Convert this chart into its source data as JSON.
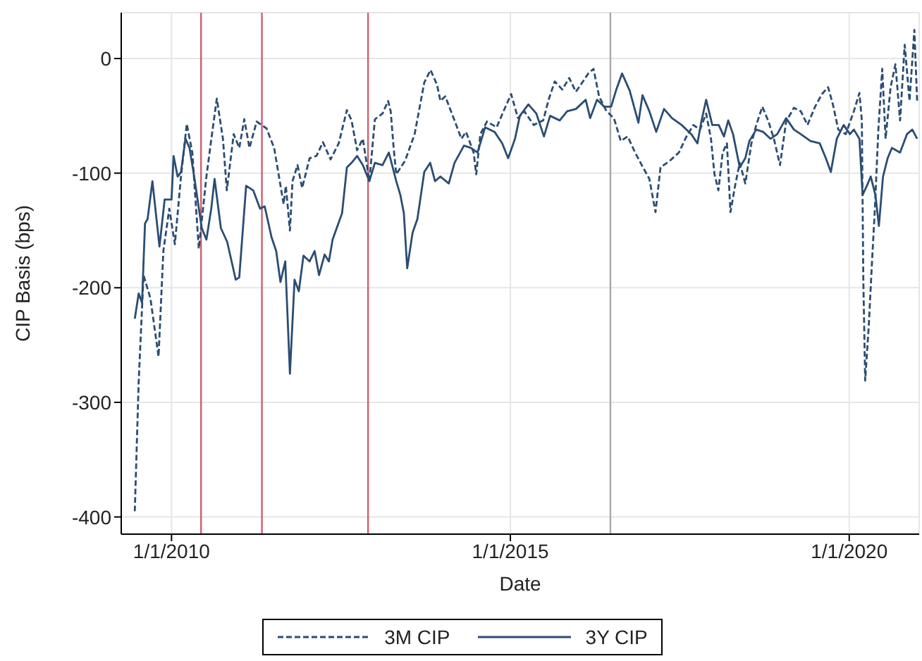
{
  "chart_data": {
    "type": "line",
    "xlabel": "Date",
    "ylabel": "CIP Basis (bps)",
    "xlim": [
      "2009-04-05",
      "2021-01-12"
    ],
    "xticks": [
      {
        "value": "2010-01-01",
        "label": "1/1/2010"
      },
      {
        "value": "2015-01-01",
        "label": "1/1/2015"
      },
      {
        "value": "2020-01-01",
        "label": "1/1/2020"
      }
    ],
    "ylim": [
      -415,
      40
    ],
    "yticks": [
      -400,
      -300,
      -200,
      -100,
      0
    ],
    "grid": true,
    "legend": "bottom",
    "marker": "none",
    "ref_lines": [
      {
        "axis": "x",
        "value": "2010-06-09",
        "color": "#d0606e"
      },
      {
        "axis": "x",
        "value": "2011-05-03",
        "color": "#d0606e"
      },
      {
        "axis": "x",
        "value": "2012-11-25",
        "color": "#d0606e"
      },
      {
        "axis": "x",
        "value": "2016-06-23",
        "color": "#a8a8a8"
      }
    ],
    "series": [
      {
        "name": "3M CIP",
        "color": "#2b4d73",
        "line_style": "dashed",
        "x": [
          "2009-06-17",
          "2009-07-08",
          "2009-08-03",
          "2009-09-09",
          "2009-10-23",
          "2009-11-18",
          "2009-12-20",
          "2010-01-19",
          "2010-02-21",
          "2010-03-24",
          "2010-04-23",
          "2010-05-28",
          "2010-07-08",
          "2010-08-07",
          "2010-09-02",
          "2010-10-05",
          "2010-10-26",
          "2010-12-02",
          "2011-01-01",
          "2011-01-28",
          "2011-02-25",
          "2011-04-05",
          "2011-05-28",
          "2011-07-08",
          "2011-08-03",
          "2011-08-28",
          "2011-09-09",
          "2011-10-01",
          "2011-10-15",
          "2011-11-11",
          "2011-12-06",
          "2012-01-15",
          "2012-02-21",
          "2012-03-27",
          "2012-05-07",
          "2012-06-20",
          "2012-08-03",
          "2012-08-28",
          "2012-09-27",
          "2012-10-28",
          "2012-12-02",
          "2013-01-01",
          "2013-02-11",
          "2013-03-13",
          "2013-03-27",
          "2013-04-12",
          "2013-04-26",
          "2013-06-13",
          "2013-08-03",
          "2013-09-24",
          "2013-10-28",
          "2013-12-02",
          "2013-12-20",
          "2014-01-15",
          "2014-03-06",
          "2014-04-12",
          "2014-05-07",
          "2014-06-17",
          "2014-07-01",
          "2014-07-23",
          "2014-08-28",
          "2014-10-19",
          "2014-11-25",
          "2015-01-05",
          "2015-02-11",
          "2015-03-17",
          "2015-05-07",
          "2015-06-27",
          "2015-07-26",
          "2015-08-28",
          "2015-10-08",
          "2015-11-14",
          "2015-12-20",
          "2016-01-23",
          "2016-02-25",
          "2016-03-24",
          "2016-04-23",
          "2016-06-02",
          "2016-07-12",
          "2016-08-18",
          "2016-09-24",
          "2016-11-03",
          "2016-12-09",
          "2017-01-19",
          "2017-02-21",
          "2017-03-20",
          "2017-05-11",
          "2017-06-27",
          "2017-08-07",
          "2017-09-13",
          "2017-10-19",
          "2017-11-21",
          "2017-12-17",
          "2018-01-05",
          "2018-01-26",
          "2018-02-18",
          "2018-03-13",
          "2018-04-01",
          "2018-04-26",
          "2018-05-21",
          "2018-06-20",
          "2018-07-23",
          "2018-08-18",
          "2018-09-20",
          "2018-10-23",
          "2018-11-21",
          "2018-12-24",
          "2019-01-26",
          "2019-03-09",
          "2019-04-15",
          "2019-05-21",
          "2019-07-01",
          "2019-08-07",
          "2019-09-09",
          "2019-10-05",
          "2019-11-03",
          "2019-12-13",
          "2020-01-26",
          "2020-02-25",
          "2020-03-09",
          "2020-03-17",
          "2020-03-27",
          "2020-04-15",
          "2020-05-03",
          "2020-05-18",
          "2020-06-06",
          "2020-06-27",
          "2020-07-15",
          "2020-08-11",
          "2020-09-06",
          "2020-10-01",
          "2020-10-26",
          "2020-11-21",
          "2020-12-17",
          "2021-01-01"
        ],
        "values": [
          -395,
          -282,
          -189,
          -209,
          -260,
          -168,
          -131,
          -162,
          -103,
          -57,
          -82,
          -166,
          -103,
          -66,
          -35,
          -70,
          -115,
          -66,
          -78,
          -53,
          -78,
          -55,
          -61,
          -78,
          -103,
          -127,
          -111,
          -150,
          -107,
          -93,
          -113,
          -87,
          -85,
          -73,
          -88,
          -74,
          -45,
          -54,
          -80,
          -70,
          -107,
          -53,
          -48,
          -37,
          -46,
          -78,
          -101,
          -89,
          -66,
          -21,
          -10,
          -23,
          -37,
          -33,
          -54,
          -70,
          -64,
          -82,
          -101,
          -66,
          -55,
          -60,
          -46,
          -31,
          -52,
          -46,
          -58,
          -54,
          -36,
          -20,
          -27,
          -17,
          -29,
          -21,
          -13,
          -9,
          -33,
          -46,
          -52,
          -72,
          -68,
          -82,
          -93,
          -105,
          -134,
          -95,
          -89,
          -82,
          -68,
          -58,
          -62,
          -48,
          -70,
          -101,
          -115,
          -82,
          -74,
          -134,
          -111,
          -91,
          -109,
          -74,
          -58,
          -42,
          -55,
          -70,
          -93,
          -55,
          -43,
          -46,
          -58,
          -42,
          -31,
          -25,
          -40,
          -62,
          -66,
          -46,
          -30,
          -54,
          -193,
          -281,
          -234,
          -177,
          -132,
          -62,
          -9,
          -70,
          -25,
          -5,
          -54,
          12,
          -37,
          25,
          -37
        ]
      },
      {
        "name": "3Y CIP",
        "color": "#2b4d73",
        "line_style": "solid",
        "x": [
          "2009-06-17",
          "2009-07-08",
          "2009-07-26",
          "2009-08-11",
          "2009-08-25",
          "2009-09-20",
          "2009-10-28",
          "2009-11-25",
          "2010-01-01",
          "2010-01-12",
          "2010-02-03",
          "2010-02-21",
          "2010-03-17",
          "2010-04-08",
          "2010-05-03",
          "2010-06-13",
          "2010-07-08",
          "2010-08-03",
          "2010-08-21",
          "2010-09-24",
          "2010-10-28",
          "2010-12-13",
          "2011-01-01",
          "2011-02-07",
          "2011-03-17",
          "2011-04-23",
          "2011-05-18",
          "2011-06-24",
          "2011-07-19",
          "2011-08-11",
          "2011-09-06",
          "2011-10-01",
          "2011-10-26",
          "2011-11-18",
          "2011-12-13",
          "2012-01-15",
          "2012-02-11",
          "2012-03-06",
          "2012-04-05",
          "2012-04-28",
          "2012-05-18",
          "2012-06-09",
          "2012-07-08",
          "2012-08-03",
          "2012-08-28",
          "2012-09-27",
          "2012-10-28",
          "2012-12-02",
          "2013-01-01",
          "2013-02-11",
          "2013-03-17",
          "2013-04-26",
          "2013-05-18",
          "2013-06-06",
          "2013-06-24",
          "2013-07-23",
          "2013-08-18",
          "2013-09-24",
          "2013-10-26",
          "2013-11-21",
          "2013-12-20",
          "2014-02-03",
          "2014-03-06",
          "2014-04-26",
          "2014-06-02",
          "2014-07-08",
          "2014-08-18",
          "2014-10-08",
          "2014-11-18",
          "2014-12-20",
          "2015-01-26",
          "2015-02-21",
          "2015-04-08",
          "2015-05-21",
          "2015-07-01",
          "2015-08-03",
          "2015-09-24",
          "2015-11-03",
          "2015-12-20",
          "2016-02-11",
          "2016-03-06",
          "2016-04-12",
          "2016-05-21",
          "2016-06-27",
          "2016-07-23",
          "2016-08-25",
          "2016-10-05",
          "2016-11-21",
          "2016-12-13",
          "2017-01-19",
          "2017-02-25",
          "2017-04-08",
          "2017-05-21",
          "2017-07-12",
          "2017-09-02",
          "2017-10-05",
          "2017-10-26",
          "2017-11-21",
          "2017-12-24",
          "2018-01-28",
          "2018-02-25",
          "2018-03-20",
          "2018-04-15",
          "2018-05-21",
          "2018-06-20",
          "2018-07-12",
          "2018-08-18",
          "2018-09-24",
          "2018-11-03",
          "2018-12-09",
          "2019-01-26",
          "2019-03-09",
          "2019-04-15",
          "2019-06-06",
          "2019-07-26",
          "2019-08-28",
          "2019-09-24",
          "2019-10-26",
          "2019-12-02",
          "2020-01-05",
          "2020-01-26",
          "2020-02-25",
          "2020-03-13",
          "2020-04-05",
          "2020-04-26",
          "2020-05-21",
          "2020-06-09",
          "2020-07-01",
          "2020-07-26",
          "2020-08-18",
          "2020-10-01",
          "2020-11-07",
          "2020-12-06",
          "2021-01-01"
        ],
        "values": [
          -227,
          -205,
          -213,
          -144,
          -140,
          -107,
          -164,
          -123,
          -123,
          -85,
          -103,
          -99,
          -70,
          -78,
          -103,
          -148,
          -158,
          -131,
          -105,
          -148,
          -160,
          -193,
          -191,
          -111,
          -115,
          -131,
          -129,
          -156,
          -168,
          -195,
          -177,
          -275,
          -193,
          -203,
          -172,
          -177,
          -168,
          -189,
          -171,
          -177,
          -158,
          -148,
          -135,
          -95,
          -91,
          -85,
          -93,
          -107,
          -91,
          -93,
          -82,
          -107,
          -119,
          -135,
          -183,
          -152,
          -140,
          -99,
          -91,
          -107,
          -103,
          -109,
          -91,
          -76,
          -78,
          -82,
          -60,
          -64,
          -74,
          -87,
          -70,
          -50,
          -40,
          -48,
          -68,
          -50,
          -54,
          -46,
          -44,
          -36,
          -52,
          -36,
          -42,
          -42,
          -28,
          -13,
          -28,
          -56,
          -32,
          -46,
          -64,
          -44,
          -52,
          -58,
          -66,
          -74,
          -55,
          -36,
          -58,
          -58,
          -68,
          -54,
          -66,
          -95,
          -87,
          -72,
          -62,
          -64,
          -70,
          -66,
          -52,
          -62,
          -66,
          -72,
          -74,
          -87,
          -99,
          -70,
          -58,
          -66,
          -62,
          -70,
          -119,
          -111,
          -103,
          -119,
          -146,
          -103,
          -87,
          -78,
          -82,
          -66,
          -62,
          -70
        ]
      }
    ]
  }
}
